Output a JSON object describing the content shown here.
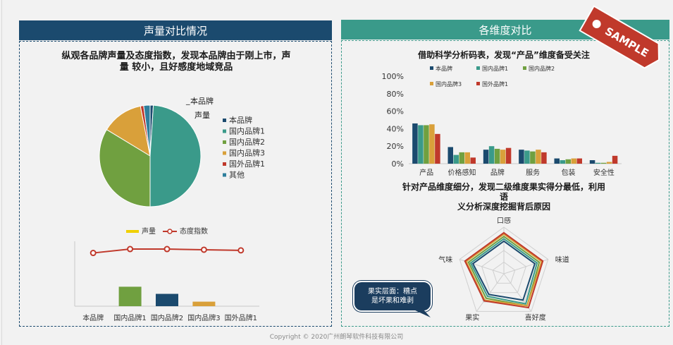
{
  "left_panel": {
    "header": "声量对比情况",
    "heading_line1": "纵观各品牌声量及态度指数，发现本品牌由于刚上市，声",
    "heading_line2": "量 较小，且好感度地域竞品"
  },
  "right_panel": {
    "header": "各维度对比",
    "heading1": "借助科学分析码表，发现“产品”维度备受关注",
    "heading2_line1": "针对产品维度细分，发现二级维度果实得分最低，利用",
    "heading2_line2": "语",
    "heading2_line3": "义分析深度挖掘背后原因"
  },
  "stamp": {
    "text": "SAMPLE",
    "color": "#c0392b"
  },
  "callout": {
    "line1": "果实层面：糟点",
    "line2": "是坏果和难剥"
  },
  "footer": {
    "text": "Copyright © 2020广州朗琴软件科技有限公司"
  },
  "colors": {
    "navy": "#1b4a6e",
    "teal": "#3a9a8a",
    "green": "#70a040",
    "gold": "#d9a03a",
    "red": "#c0392b",
    "cyan": "#2e7f9c"
  },
  "chart_data": [
    {
      "type": "pie",
      "title": "声量",
      "title_prefix": "_",
      "title_line1": "本品牌",
      "categories": [
        "本品牌",
        "国内品牌1",
        "国内品牌2",
        "国内品牌3",
        "国外品牌1",
        "其他"
      ],
      "values": [
        1,
        48,
        33,
        13,
        1,
        2
      ],
      "colors": [
        "#1b4a6e",
        "#3a9a8a",
        "#70a040",
        "#d9a03a",
        "#c0392b",
        "#2e7f9c"
      ],
      "legend_position": "right"
    },
    {
      "type": "bar",
      "title": "",
      "legend": [
        "声量",
        "态度指数"
      ],
      "legend_position": "top",
      "categories": [
        "本品牌",
        "国内品牌1",
        "国内品牌2",
        "国内品牌3",
        "国外品牌1"
      ],
      "series": [
        {
          "name": "声量",
          "type": "bar",
          "values": [
            0,
            0.3,
            0.19,
            0.07,
            0
          ],
          "colors": [
            "#1b4a6e",
            "#70a040",
            "#1b4a6e",
            "#d9a03a",
            "#c0392b"
          ]
        },
        {
          "name": "态度指数",
          "type": "line",
          "values": [
            0.82,
            0.88,
            0.88,
            0.87,
            0.86
          ],
          "color": "#c0392b"
        }
      ],
      "ylim": [
        0,
        1
      ]
    },
    {
      "type": "bar",
      "title": "",
      "legend": [
        "本品牌",
        "国内品牌1",
        "国内品牌2",
        "国内品牌3",
        "国外品牌1"
      ],
      "legend_position": "top",
      "categories": [
        "产品",
        "价格感知",
        "品牌",
        "服务",
        "包装",
        "安全性"
      ],
      "yticks": [
        "0%",
        "20%",
        "40%",
        "60%",
        "80%",
        "100%"
      ],
      "ylim": [
        0,
        100
      ],
      "series": [
        {
          "name": "本品牌",
          "values": [
            46,
            19,
            16,
            16,
            6,
            4
          ],
          "color": "#1b4a6e"
        },
        {
          "name": "国内品牌1",
          "values": [
            44,
            10,
            20,
            15,
            4,
            1
          ],
          "color": "#3a9a8a"
        },
        {
          "name": "国内品牌2",
          "values": [
            44,
            13,
            17,
            14,
            5,
            1
          ],
          "color": "#70a040"
        },
        {
          "name": "国内品牌3",
          "values": [
            45,
            13,
            16,
            16,
            6,
            2
          ],
          "color": "#d9a03a"
        },
        {
          "name": "国外品牌1",
          "values": [
            34,
            7,
            18,
            13,
            6,
            9
          ],
          "color": "#c0392b"
        }
      ]
    },
    {
      "type": "radar",
      "title": "",
      "axes": [
        "口感",
        "味道",
        "喜好度",
        "果实",
        "气味"
      ],
      "rmax": 10,
      "series": [
        {
          "name": "本品牌",
          "values": [
            7,
            7,
            7,
            5.5,
            7
          ],
          "color": "#1b4a6e"
        },
        {
          "name": "国内品牌1",
          "values": [
            7.5,
            7.5,
            8,
            6,
            7.5
          ],
          "color": "#3a9a8a"
        },
        {
          "name": "国内品牌2",
          "values": [
            8,
            8,
            8.5,
            6.5,
            8
          ],
          "color": "#70a040"
        },
        {
          "name": "国内品牌3",
          "values": [
            8.5,
            8.5,
            8.5,
            7,
            8.5
          ],
          "color": "#d9a03a"
        },
        {
          "name": "国外品牌1",
          "values": [
            8.8,
            8.8,
            9,
            7.2,
            8.8
          ],
          "color": "#c0392b"
        }
      ]
    }
  ]
}
